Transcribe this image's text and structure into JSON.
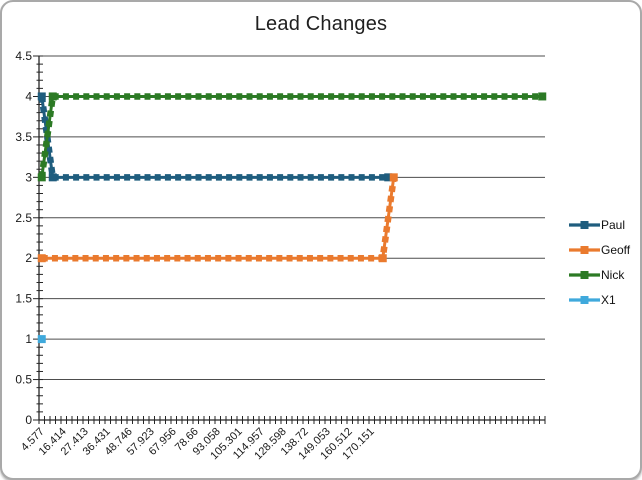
{
  "chart_data": {
    "type": "line",
    "title": "Lead Changes",
    "x_axis": {
      "tick_labels": [
        "4.577",
        "16.414",
        "27.413",
        "36.431",
        "48.746",
        "57.923",
        "67.956",
        "78.66",
        "93.058",
        "105.301",
        "114.957",
        "128.598",
        "138.72",
        "149.053",
        "160.512",
        "170.151"
      ],
      "label_every_n_categories": 4,
      "num_categories": 92,
      "labels_rotation_deg": -45
    },
    "y_axis": {
      "min": 0,
      "max": 4.5,
      "major_step": 0.5,
      "minor_step": 0.1,
      "tick_labels": [
        "4.5",
        "4",
        "3.5",
        "3",
        "2.5",
        "2",
        "1.5",
        "1",
        "0.5",
        "0"
      ]
    },
    "grid": true,
    "legend_position": "right",
    "series": [
      {
        "name": "Paul",
        "color": "#1f5d7e",
        "points": [
          [
            0,
            4
          ],
          [
            2,
            3
          ],
          [
            63,
            3
          ]
        ]
      },
      {
        "name": "Geoff",
        "color": "#ea7a2e",
        "points": [
          [
            0,
            2
          ],
          [
            62,
            2
          ],
          [
            64,
            3
          ]
        ]
      },
      {
        "name": "Nick",
        "color": "#2c7a25",
        "points": [
          [
            0,
            3
          ],
          [
            2,
            4
          ],
          [
            91,
            4
          ]
        ]
      },
      {
        "name": "X1",
        "color": "#3fa9dc",
        "points": [
          [
            0,
            1
          ]
        ]
      }
    ],
    "series_note": "points are [category_index, value]; categories evenly spaced; only first 16 categories carry axis labels",
    "line_style": "thick square-dash with square markers",
    "colors": {
      "gridline": "#4d4d4d",
      "axis": "#262626",
      "text": "#1a1a1a",
      "frame_border": "#a9a9a9"
    }
  }
}
